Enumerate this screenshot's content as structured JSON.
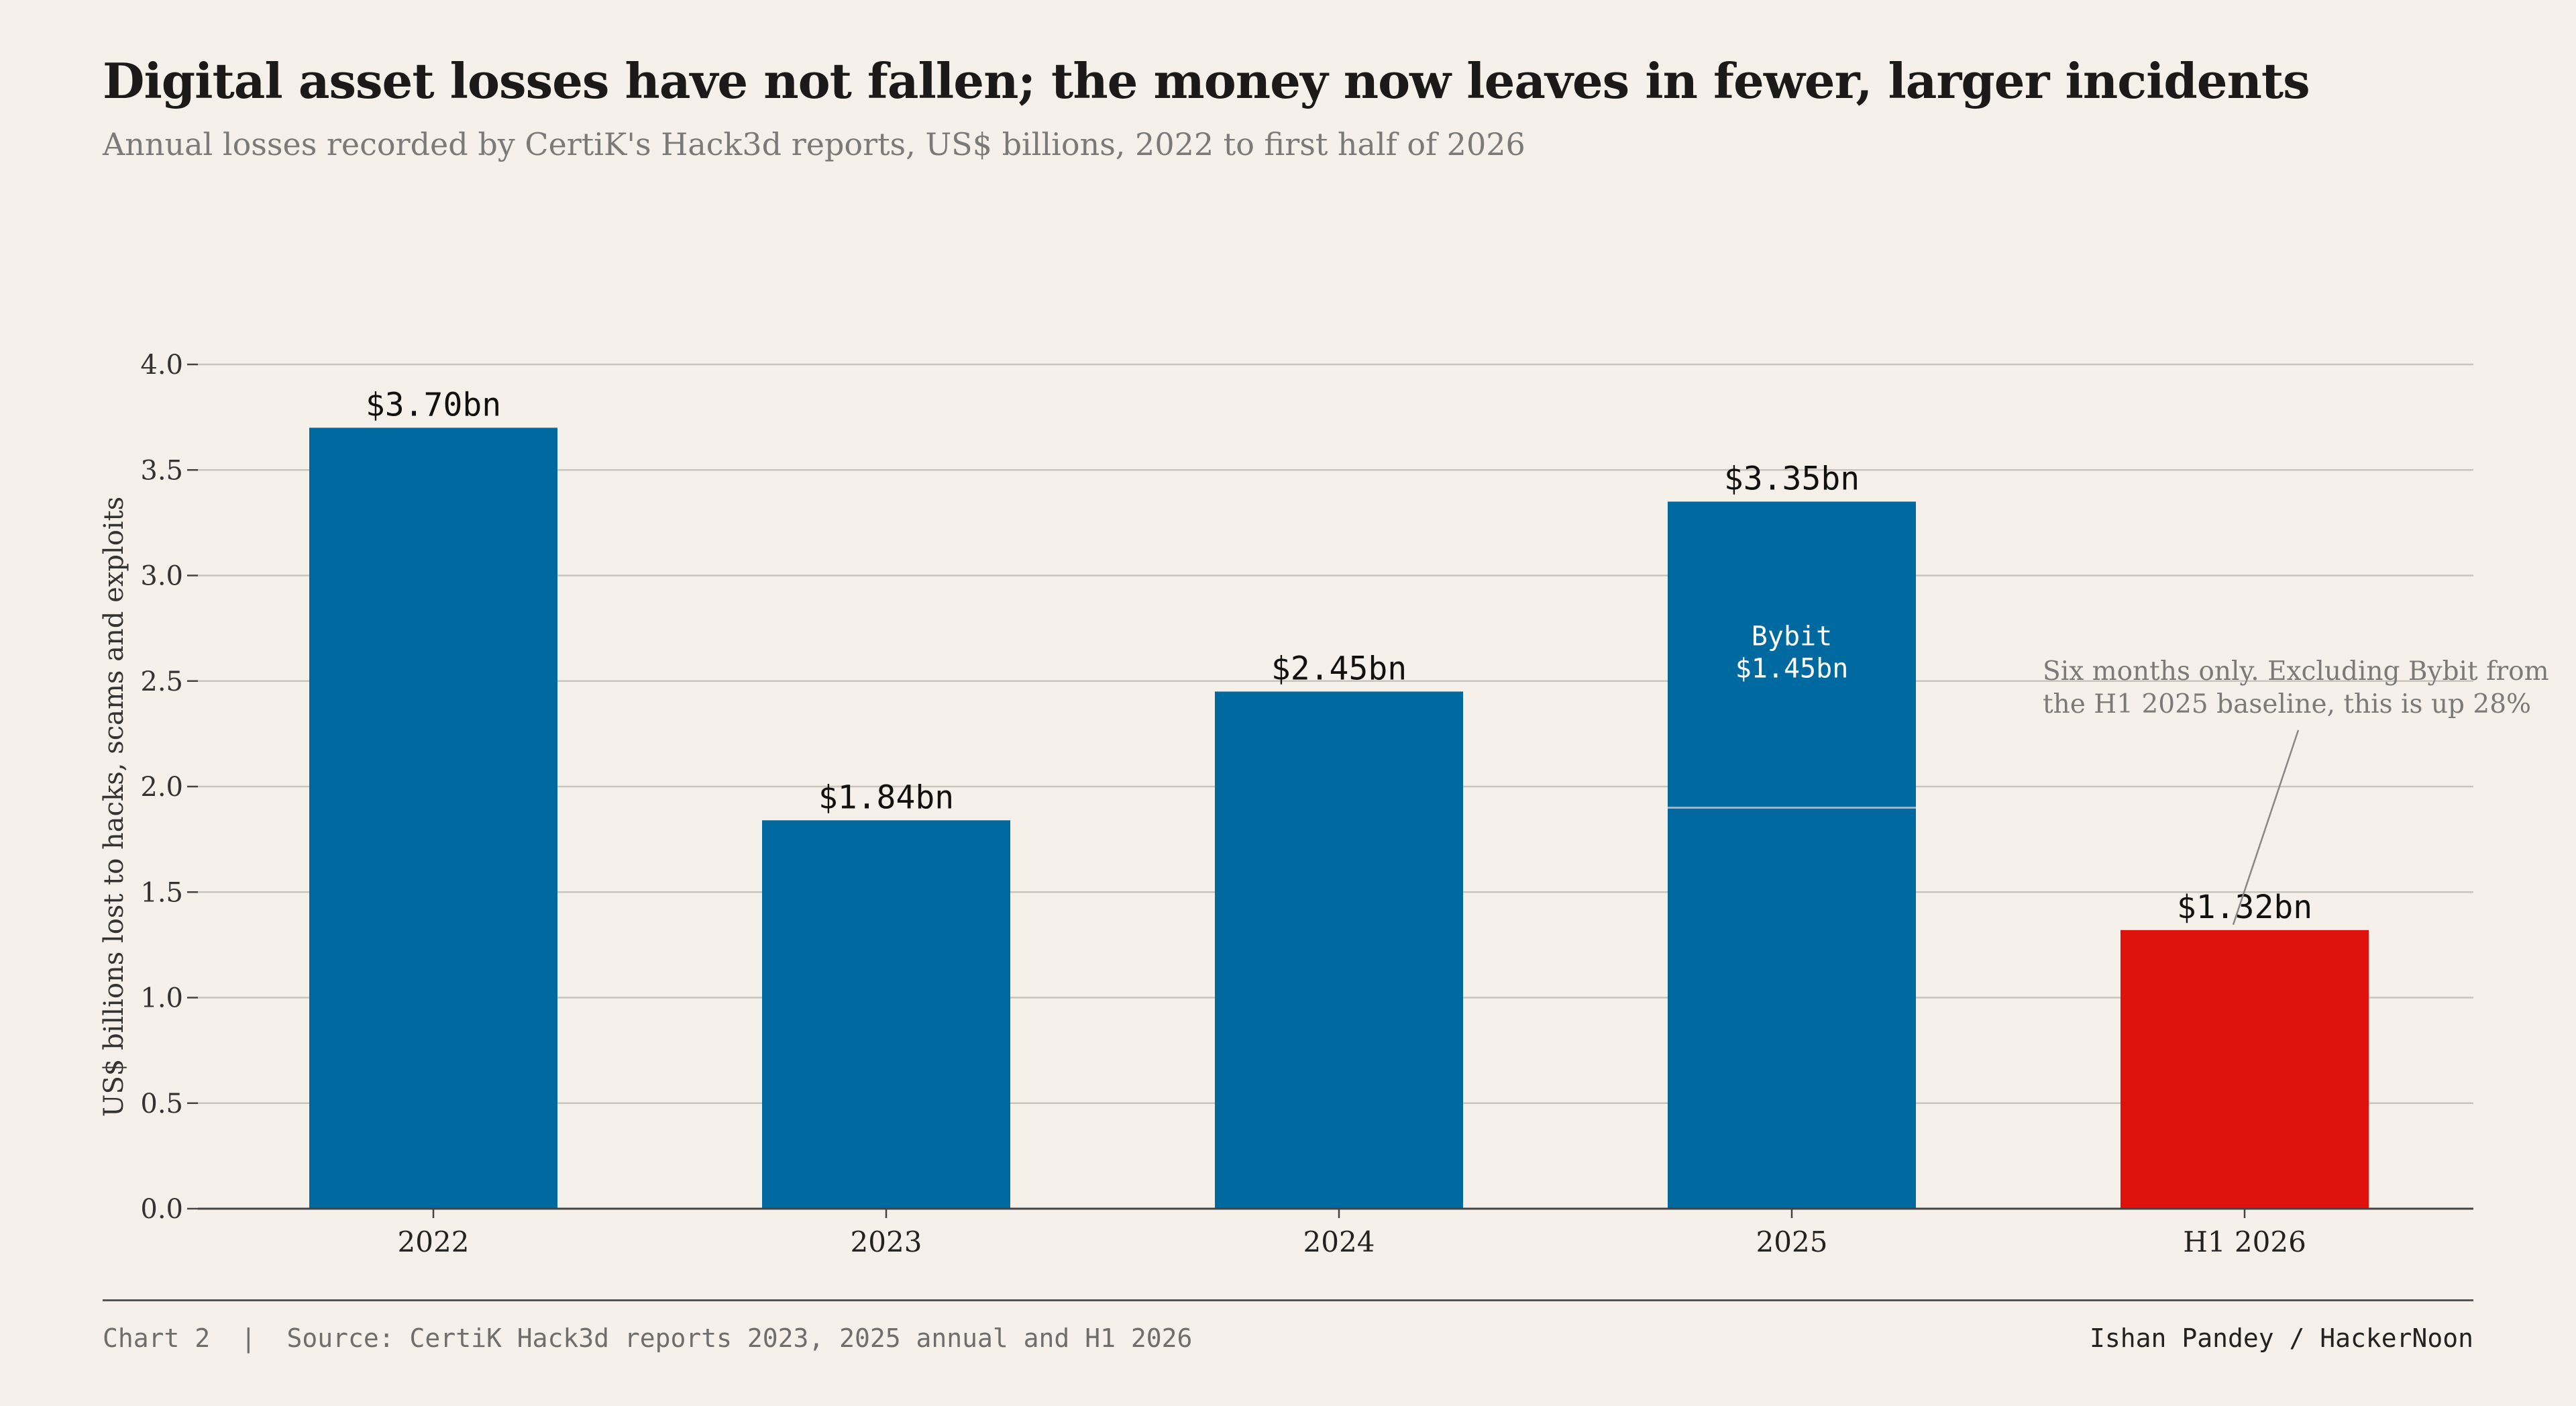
{
  "title": "Digital asset losses have not fallen; the money now leaves in fewer, larger incidents",
  "subtitle": "Annual losses recorded by CertiK's Hack3d reports, US$ billions, 2022 to first half of 2026",
  "chart_data": {
    "type": "bar",
    "categories": [
      "2022",
      "2023",
      "2024",
      "2025",
      "H1 2026"
    ],
    "values": [
      3.7,
      1.84,
      2.45,
      3.35,
      1.32
    ],
    "value_labels": [
      "$3.70bn",
      "$1.84bn",
      "$2.45bn",
      "$3.35bn",
      "$1.32bn"
    ],
    "segments": {
      "category": "2025",
      "base": 1.9,
      "highlight": 1.45,
      "label_line1": "Bybit",
      "label_line2": "$1.45bn"
    },
    "highlight_category": "H1 2026",
    "colors": {
      "bar": "#00699f",
      "highlight": "#e0120e",
      "grid": "#c8c4be",
      "axis": "#444444",
      "background": "#f5f0ea"
    },
    "ylabel": "US$ billions lost to hacks, scams and exploits",
    "xlabel": "",
    "ylim": [
      0,
      4.0
    ],
    "yticks": [
      "0.0",
      "0.5",
      "1.0",
      "1.5",
      "2.0",
      "2.5",
      "3.0",
      "3.5",
      "4.0"
    ],
    "grid": true,
    "annotation": {
      "line1": "Six months only. Excluding Bybit from",
      "line2": "the H1 2025 baseline, this is up 28%",
      "target_category": "H1 2026"
    }
  },
  "footer": {
    "left": "Chart 2  |  Source: CertiK Hack3d reports 2023, 2025 annual and H1 2026",
    "right": "Ishan Pandey / HackerNoon"
  }
}
